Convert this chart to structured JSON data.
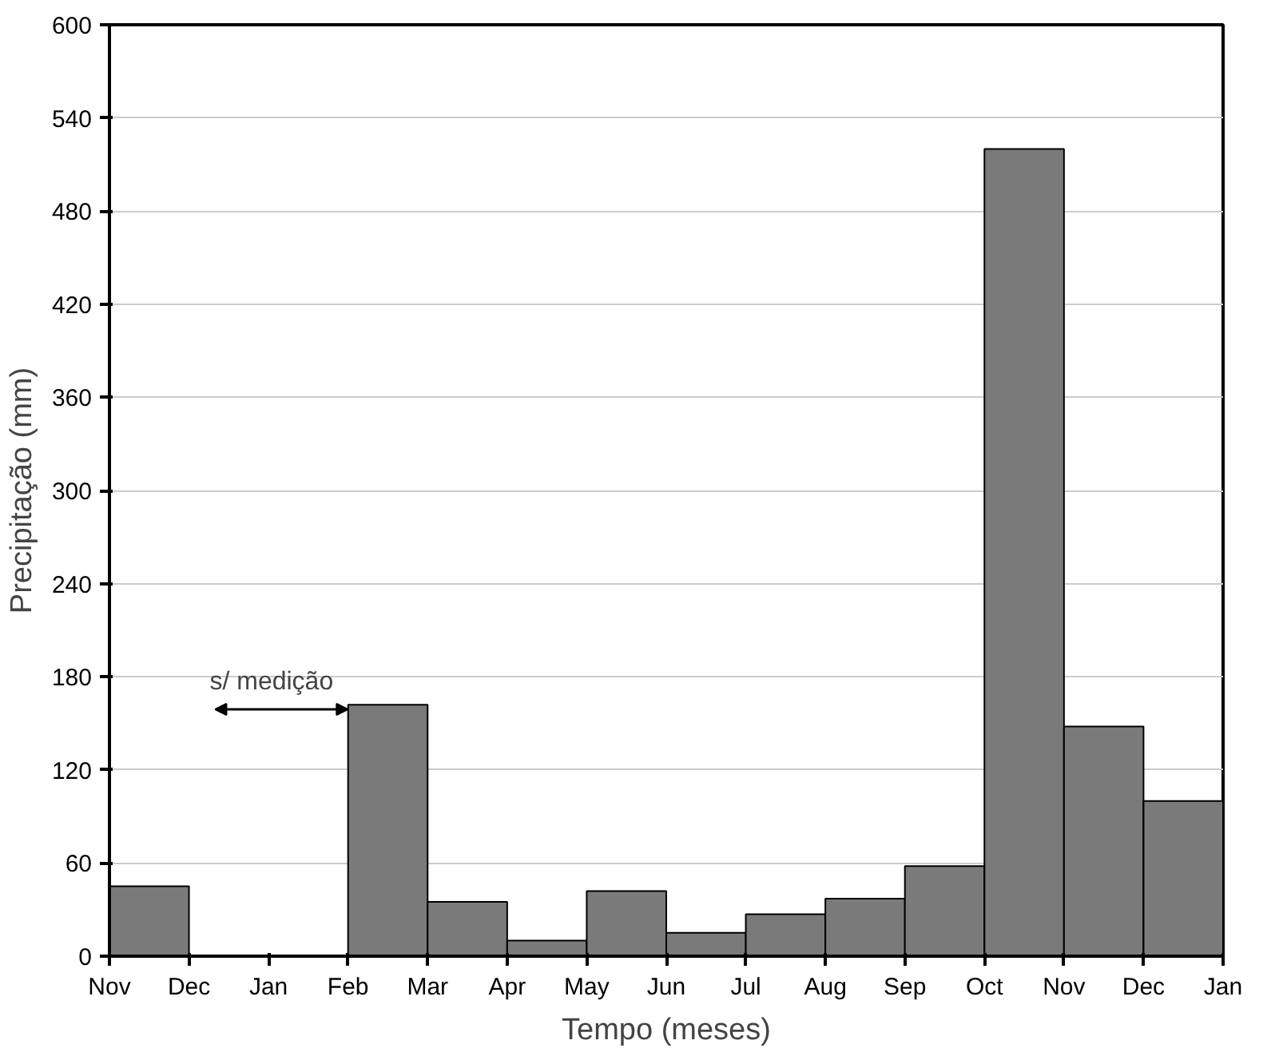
{
  "chart_data": {
    "type": "bar",
    "xlabel": "Tempo (meses)",
    "ylabel": "Precipitação (mm)",
    "categories": [
      "Nov",
      "Dec",
      "Jan",
      "Feb",
      "Mar",
      "Apr",
      "May",
      "Jun",
      "Jul",
      "Aug",
      "Sep",
      "Oct",
      "Nov",
      "Dec",
      "Jan"
    ],
    "values": [
      45,
      0,
      0,
      162,
      35,
      10,
      42,
      15,
      27,
      37,
      58,
      520,
      148,
      100,
      null
    ],
    "color": "#7a7a7a",
    "ylim": [
      0,
      600
    ],
    "yticks": [
      0,
      60,
      120,
      180,
      240,
      300,
      360,
      420,
      480,
      540,
      600
    ],
    "grid": "y",
    "annotations": [
      "s/ medição"
    ]
  }
}
